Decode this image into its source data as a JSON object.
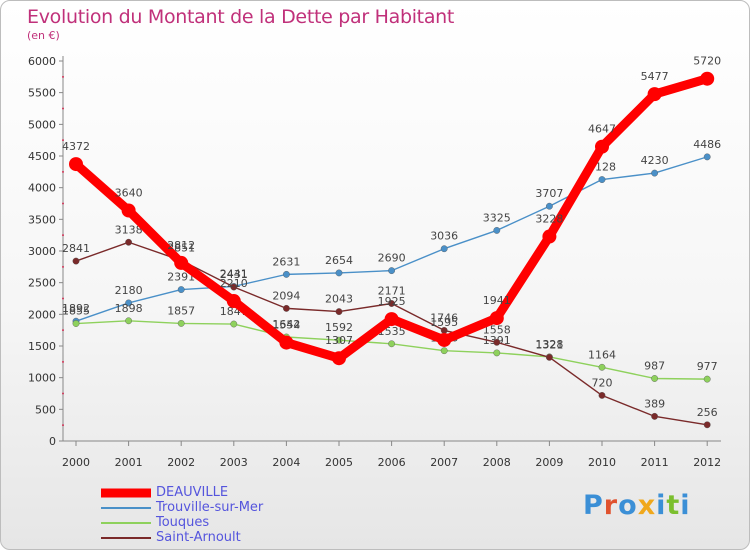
{
  "header": {
    "title": "Evolution du Montant de la Dette par Habitant",
    "subtitle": "(en €)"
  },
  "logo": {
    "text": "Proxiti",
    "letter_colors": [
      "#3b8fd6",
      "#e0522e",
      "#3b8fd6",
      "#f0a81c",
      "#3b8fd6",
      "#7bbf2e",
      "#3b8fd6"
    ]
  },
  "chart_data": {
    "type": "line",
    "title": "Evolution du Montant de la Dette par Habitant",
    "subtitle": "(en €)",
    "x": [
      "2000",
      "2001",
      "2002",
      "2003",
      "2004",
      "2005",
      "2006",
      "2007",
      "2008",
      "2009",
      "2010",
      "2011",
      "2012"
    ],
    "ylim": [
      0,
      6000
    ],
    "yticks": [
      0,
      500,
      1000,
      1500,
      2000,
      2500,
      3000,
      3500,
      4000,
      4500,
      5000,
      5500,
      6000
    ],
    "grid": false,
    "legend": "bottom-left",
    "series": [
      {
        "name": "DEAUVILLE",
        "color": "#ff0000",
        "emphasis": true,
        "values": [
          4372,
          3640,
          2812,
          2210,
          1554,
          1307,
          1925,
          1595,
          1941,
          3228,
          4647,
          5477,
          5720
        ],
        "labels": [
          "4372",
          "3640",
          "2812",
          "2210",
          "1554",
          "1307",
          "1925",
          "1595",
          "1941",
          "3228",
          "4647",
          "5477",
          "5720"
        ]
      },
      {
        "name": "Trouville-sur-Mer",
        "color": "#4a90c8",
        "values": [
          1892,
          2180,
          2391,
          2441,
          2631,
          2654,
          2690,
          3036,
          3325,
          3707,
          4128,
          4230,
          4486
        ],
        "labels": [
          "1892",
          "2180",
          "2391",
          "2441",
          "2631",
          "2654",
          "2690",
          "3036",
          "3325",
          "3707",
          "4128",
          "4230",
          "4486"
        ]
      },
      {
        "name": "Touques",
        "color": "#8ed15c",
        "values": [
          1855,
          1898,
          1857,
          1847,
          1642,
          1592,
          1535,
          1426,
          1391,
          1328,
          1164,
          987,
          977
        ],
        "labels": [
          "1855",
          "1898",
          "1857",
          "1847",
          "1642",
          "1592",
          "1535",
          "1426",
          "1391",
          "1328",
          "1164",
          "987",
          "977"
        ]
      },
      {
        "name": "Saint-Arnoult",
        "color": "#7a2a2a",
        "values": [
          2841,
          3138,
          2851,
          2431,
          2094,
          2043,
          2171,
          1746,
          1558,
          1321,
          720,
          389,
          256
        ],
        "labels": [
          "2841",
          "3138",
          "2851",
          "2431",
          "2094",
          "2043",
          "2171",
          "1746",
          "1558",
          "1321",
          "720",
          "389",
          "256"
        ]
      }
    ]
  }
}
